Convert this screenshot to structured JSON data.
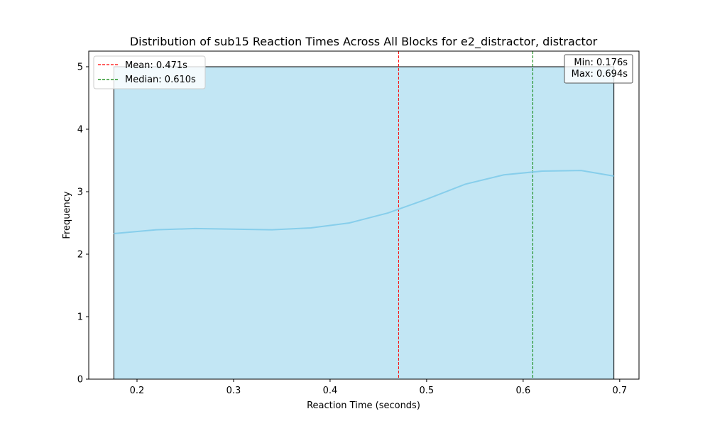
{
  "chart_data": {
    "type": "bar",
    "title": "Distribution of sub15 Reaction Times Across All Blocks for e2_distractor, distractor",
    "xlabel": "Reaction Time (seconds)",
    "ylabel": "Frequency",
    "xlim": [
      0.15,
      0.72
    ],
    "ylim": [
      0,
      5.25
    ],
    "x_ticks": [
      0.2,
      0.3,
      0.4,
      0.5,
      0.6,
      0.7
    ],
    "x_tick_labels": [
      "0.2",
      "0.3",
      "0.4",
      "0.5",
      "0.6",
      "0.7"
    ],
    "y_ticks": [
      0,
      1,
      2,
      3,
      4,
      5
    ],
    "y_tick_labels": [
      "0",
      "1",
      "2",
      "3",
      "4",
      "5"
    ],
    "bins": [
      {
        "start": 0.176,
        "end": 0.694,
        "count": 5
      }
    ],
    "kde": {
      "x": [
        0.176,
        0.22,
        0.26,
        0.3,
        0.34,
        0.38,
        0.42,
        0.46,
        0.5,
        0.54,
        0.58,
        0.62,
        0.66,
        0.694
      ],
      "y": [
        2.33,
        2.39,
        2.41,
        2.4,
        2.39,
        2.42,
        2.5,
        2.66,
        2.88,
        3.12,
        3.27,
        3.33,
        3.34,
        3.25
      ]
    },
    "mean": 0.471,
    "median": 0.61,
    "legend": {
      "position": "upper-left",
      "entries": [
        {
          "label": "Mean: 0.471s",
          "color": "#ff0000"
        },
        {
          "label": "Median: 0.610s",
          "color": "#008000"
        }
      ]
    },
    "stats_box": {
      "position": "upper-right",
      "lines": [
        "Min: 0.176s",
        "Max: 0.694s"
      ]
    },
    "colors": {
      "bar_fill": "#c2e6f4",
      "bar_edge": "#000000",
      "kde_line": "#87ceeb",
      "mean_line": "#ff0000",
      "median_line": "#008000"
    },
    "grid": false
  }
}
